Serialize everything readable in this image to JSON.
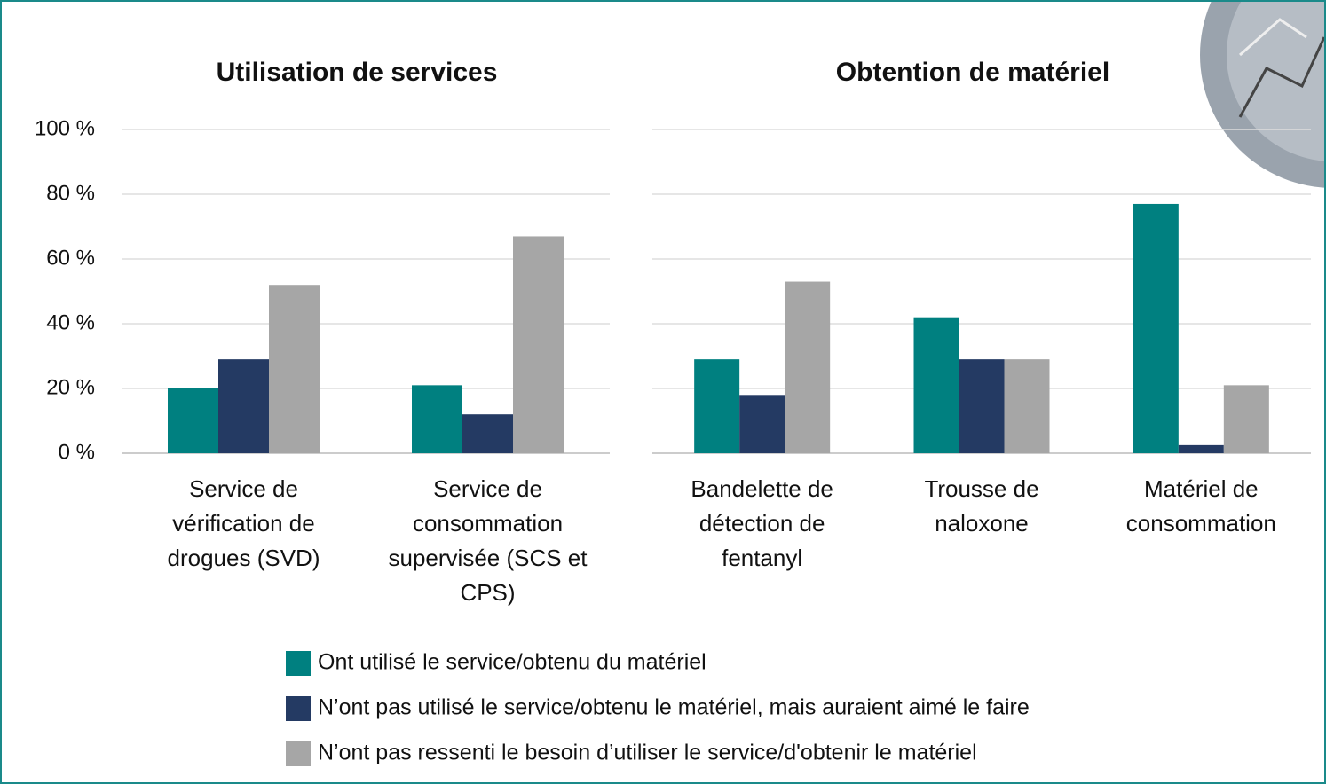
{
  "chart_data": [
    {
      "type": "bar",
      "title": "Utilisation de services",
      "categories": [
        "Service de vérification de drogues (SVD)",
        "Service de consommation supervisée (SCS et CPS)"
      ],
      "series": [
        {
          "name": "Ont utilisé le service/obtenu du matériel",
          "color": "#008080",
          "values": [
            20,
            21
          ]
        },
        {
          "name": "N’ont pas utilisé le service/obtenu le matériel, mais auraient aimé le faire",
          "color": "#243a63",
          "values": [
            29,
            12
          ]
        },
        {
          "name": "N’ont pas ressenti le besoin d’utiliser le service/d'obtenir le matériel",
          "color": "#a6a6a6",
          "values": [
            52,
            67
          ]
        }
      ],
      "ylim": [
        0,
        100
      ],
      "yticks": [
        {
          "value": 0,
          "label": "0 %"
        },
        {
          "value": 20,
          "label": "20 %"
        },
        {
          "value": 40,
          "label": "40 %"
        },
        {
          "value": 60,
          "label": "60 %"
        },
        {
          "value": 80,
          "label": "80 %"
        },
        {
          "value": 100,
          "label": "100 %"
        }
      ],
      "show_ytick_labels": true,
      "grid": true
    },
    {
      "type": "bar",
      "title": "Obtention de matériel",
      "categories": [
        "Bandelette de détection de fentanyl",
        "Trousse de naloxone",
        "Matériel de consommation"
      ],
      "series": [
        {
          "color": "#008080",
          "values": [
            29,
            42,
            77
          ]
        },
        {
          "color": "#243a63",
          "values": [
            18,
            29,
            2.5
          ]
        },
        {
          "color": "#a6a6a6",
          "values": [
            53,
            29,
            21
          ]
        }
      ],
      "ylim": [
        0,
        100
      ],
      "yticks": [
        0,
        20,
        40,
        60,
        80,
        100
      ],
      "show_ytick_labels": false,
      "grid": true
    }
  ]
}
